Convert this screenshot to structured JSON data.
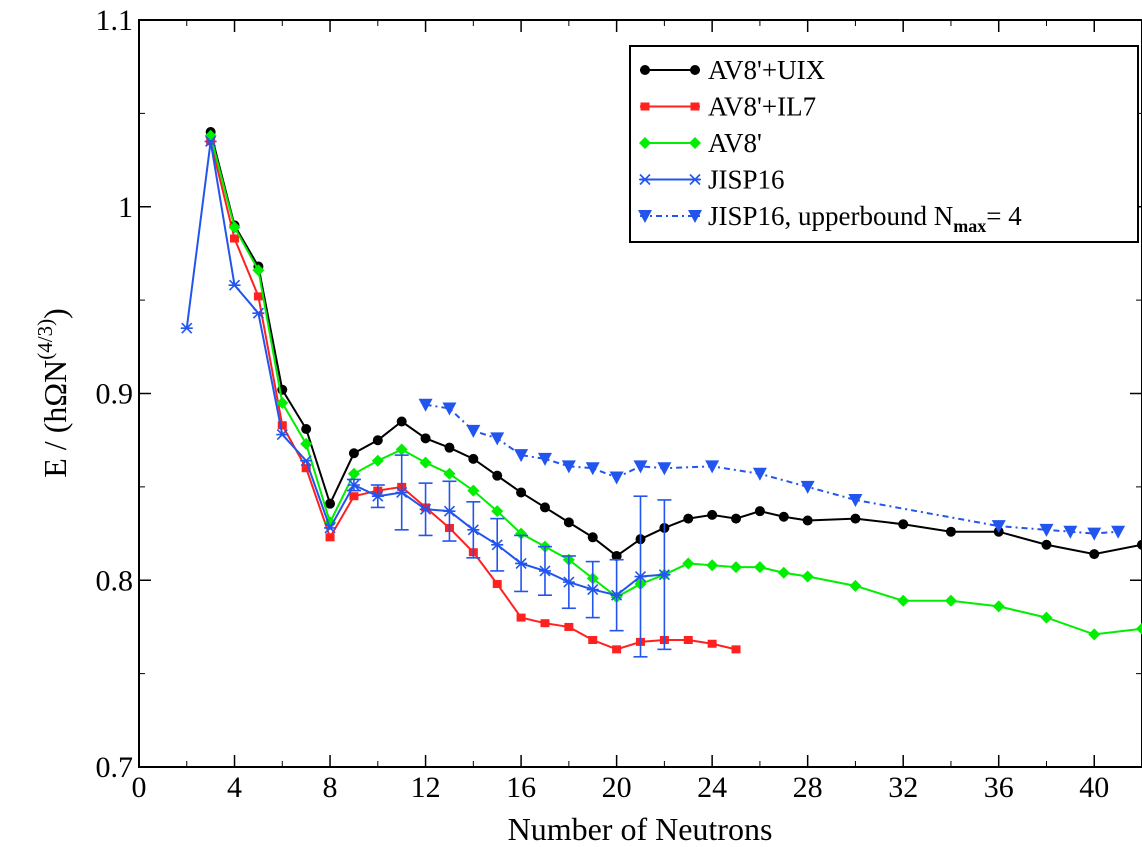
{
  "chart_data": {
    "type": "line",
    "title": "",
    "xlabel": "Number of Neutrons",
    "ylabel": "E / (hΩN",
    "ylabel_sup": "(4/3)",
    "ylabel_close": ")",
    "xlim": [
      0,
      42
    ],
    "ylim": [
      0.7,
      1.1
    ],
    "xticks": [
      0,
      4,
      8,
      12,
      16,
      20,
      24,
      28,
      32,
      36,
      40
    ],
    "xtick_labels": [
      "0",
      "4",
      "8",
      "12",
      "16",
      "20",
      "24",
      "28",
      "32",
      "36",
      "40"
    ],
    "yticks": [
      0.7,
      0.8,
      0.9,
      1.0,
      1.1
    ],
    "ytick_labels": [
      "0.7",
      "0.8",
      "0.9",
      "1",
      "1.1"
    ],
    "grid": false,
    "legend_position": "top-right",
    "series": [
      {
        "name": "AV8'+UIX",
        "color": "#000000",
        "marker": "circle",
        "line": "solid",
        "points": [
          [
            3,
            1.04
          ],
          [
            4,
            0.99
          ],
          [
            5,
            0.968
          ],
          [
            6,
            0.902
          ],
          [
            7,
            0.881
          ],
          [
            8,
            0.841
          ],
          [
            9,
            0.868
          ],
          [
            10,
            0.875
          ],
          [
            11,
            0.885
          ],
          [
            12,
            0.876
          ],
          [
            13,
            0.871
          ],
          [
            14,
            0.865
          ],
          [
            15,
            0.856
          ],
          [
            16,
            0.847
          ],
          [
            17,
            0.839
          ],
          [
            18,
            0.831
          ],
          [
            19,
            0.823
          ],
          [
            20,
            0.813
          ],
          [
            21,
            0.822
          ],
          [
            22,
            0.828
          ],
          [
            23,
            0.833
          ],
          [
            24,
            0.835
          ],
          [
            25,
            0.833
          ],
          [
            26,
            0.837
          ],
          [
            27,
            0.834
          ],
          [
            28,
            0.832
          ],
          [
            30,
            0.833
          ],
          [
            32,
            0.83
          ],
          [
            34,
            0.826
          ],
          [
            36,
            0.826
          ],
          [
            38,
            0.819
          ],
          [
            40,
            0.814
          ],
          [
            42,
            0.819
          ]
        ]
      },
      {
        "name": "AV8'+IL7",
        "color": "#ff2020",
        "marker": "square",
        "line": "solid",
        "points": [
          [
            3,
            1.035
          ],
          [
            4,
            0.983
          ],
          [
            5,
            0.952
          ],
          [
            6,
            0.883
          ],
          [
            7,
            0.86
          ],
          [
            8,
            0.823
          ],
          [
            9,
            0.845
          ],
          [
            10,
            0.848
          ],
          [
            11,
            0.85
          ],
          [
            12,
            0.839
          ],
          [
            13,
            0.828
          ],
          [
            14,
            0.815
          ],
          [
            15,
            0.798
          ],
          [
            16,
            0.78
          ],
          [
            17,
            0.777
          ],
          [
            18,
            0.775
          ],
          [
            19,
            0.768
          ],
          [
            20,
            0.763
          ],
          [
            21,
            0.767
          ],
          [
            22,
            0.768
          ],
          [
            23,
            0.768
          ],
          [
            24,
            0.766
          ],
          [
            25,
            0.763
          ]
        ]
      },
      {
        "name": "AV8'",
        "color": "#00ee00",
        "marker": "diamond",
        "line": "solid",
        "points": [
          [
            3,
            1.038
          ],
          [
            4,
            0.989
          ],
          [
            5,
            0.966
          ],
          [
            6,
            0.895
          ],
          [
            7,
            0.873
          ],
          [
            8,
            0.831
          ],
          [
            9,
            0.857
          ],
          [
            10,
            0.864
          ],
          [
            11,
            0.87
          ],
          [
            12,
            0.863
          ],
          [
            13,
            0.857
          ],
          [
            14,
            0.848
          ],
          [
            15,
            0.837
          ],
          [
            16,
            0.825
          ],
          [
            17,
            0.818
          ],
          [
            18,
            0.811
          ],
          [
            19,
            0.801
          ],
          [
            20,
            0.791
          ],
          [
            21,
            0.798
          ],
          [
            22,
            0.803
          ],
          [
            23,
            0.809
          ],
          [
            24,
            0.808
          ],
          [
            25,
            0.807
          ],
          [
            26,
            0.807
          ],
          [
            27,
            0.804
          ],
          [
            28,
            0.802
          ],
          [
            30,
            0.797
          ],
          [
            32,
            0.789
          ],
          [
            34,
            0.789
          ],
          [
            36,
            0.786
          ],
          [
            38,
            0.78
          ],
          [
            40,
            0.771
          ],
          [
            42,
            0.774
          ]
        ]
      },
      {
        "name": "JISP16",
        "color": "#2255ee",
        "marker": "star",
        "line": "solid",
        "points": [
          [
            2,
            0.935
          ],
          [
            3,
            1.035
          ],
          [
            4,
            0.958
          ],
          [
            5,
            0.943
          ],
          [
            6,
            0.878
          ],
          [
            7,
            0.864
          ],
          [
            8,
            0.828
          ],
          [
            9,
            0.851
          ],
          [
            10,
            0.845
          ],
          [
            11,
            0.847
          ],
          [
            12,
            0.838
          ],
          [
            13,
            0.837
          ],
          [
            14,
            0.827
          ],
          [
            15,
            0.819
          ],
          [
            16,
            0.809
          ],
          [
            17,
            0.805
          ],
          [
            18,
            0.799
          ],
          [
            19,
            0.795
          ],
          [
            20,
            0.792
          ],
          [
            21,
            0.802
          ],
          [
            22,
            0.803
          ]
        ],
        "errors": [
          0,
          0,
          0,
          0,
          0,
          0,
          0,
          0.003,
          0.006,
          0.02,
          0.014,
          0.016,
          0.015,
          0.014,
          0.015,
          0.013,
          0.014,
          0.015,
          0.019,
          0.043,
          0.04
        ]
      },
      {
        "name": "JISP16, upperbound N",
        "name_sub": "max",
        "name_suffix": "= 4",
        "color": "#2255ee",
        "marker": "triangle-down",
        "line": "dash-dot",
        "points": [
          [
            12,
            0.894
          ],
          [
            13,
            0.892
          ],
          [
            14,
            0.88
          ],
          [
            15,
            0.876
          ],
          [
            16,
            0.867
          ],
          [
            17,
            0.865
          ],
          [
            18,
            0.861
          ],
          [
            19,
            0.86
          ],
          [
            20,
            0.855
          ],
          [
            21,
            0.861
          ],
          [
            22,
            0.86
          ],
          [
            24,
            0.861
          ],
          [
            26,
            0.857
          ],
          [
            28,
            0.85
          ],
          [
            30,
            0.843
          ],
          [
            36,
            0.829
          ],
          [
            38,
            0.827
          ],
          [
            39,
            0.826
          ],
          [
            40,
            0.825
          ],
          [
            41,
            0.826
          ]
        ]
      }
    ]
  }
}
